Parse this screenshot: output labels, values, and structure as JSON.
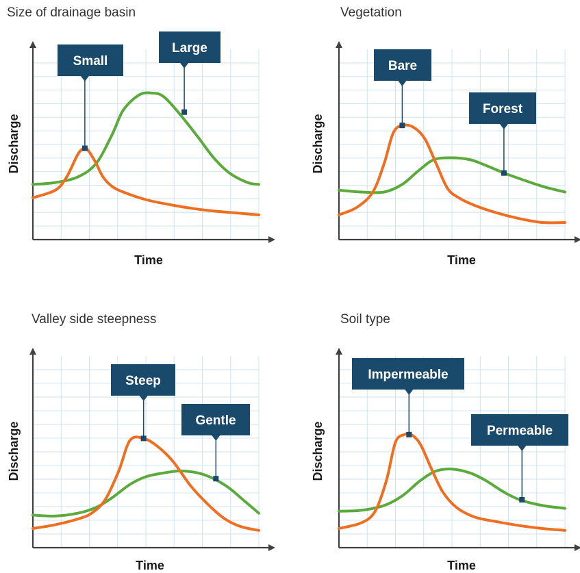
{
  "colors": {
    "grid": "#cfe3f1",
    "axis": "#404040",
    "callout_bg": "#1a4a6b",
    "callout_text": "#ffffff",
    "series_a": "#ee6f22",
    "series_b": "#5aab3c"
  },
  "chart_data": [
    {
      "type": "line",
      "title": "Size of drainage basin",
      "xlabel": "Time",
      "ylabel": "Discharge",
      "grid": true,
      "xlim": [
        0,
        10
      ],
      "ylim": [
        0,
        10
      ],
      "series": [
        {
          "name": "Small",
          "color": "#ee6f22",
          "x": [
            0,
            1,
            1.5,
            2,
            2.3,
            2.5,
            2.8,
            3.1,
            3.5,
            4,
            5,
            6,
            7,
            8,
            10
          ],
          "y": [
            2.2,
            2.6,
            3.3,
            4.5,
            4.8,
            4.6,
            4.0,
            3.3,
            2.8,
            2.5,
            2.1,
            1.85,
            1.65,
            1.5,
            1.3
          ],
          "label_at": [
            2.3,
            4.8
          ]
        },
        {
          "name": "Large",
          "color": "#5aab3c",
          "x": [
            0,
            1,
            2,
            2.8,
            3.5,
            4,
            4.7,
            5.3,
            5.8,
            6.5,
            7.3,
            8,
            8.7,
            9.5,
            10
          ],
          "y": [
            2.9,
            3.0,
            3.3,
            4.0,
            5.5,
            6.8,
            7.6,
            7.7,
            7.5,
            6.6,
            5.4,
            4.3,
            3.5,
            3.0,
            2.9
          ],
          "label_at": [
            6.7,
            6.7
          ]
        }
      ]
    },
    {
      "type": "line",
      "title": "Vegetation",
      "xlabel": "Time",
      "ylabel": "Discharge",
      "grid": true,
      "xlim": [
        0,
        10
      ],
      "ylim": [
        0,
        10
      ],
      "series": [
        {
          "name": "Bare",
          "color": "#ee6f22",
          "x": [
            0,
            0.8,
            1.5,
            2,
            2.4,
            2.8,
            3.3,
            3.8,
            4.3,
            4.8,
            5.3,
            6,
            7,
            8,
            9,
            10
          ],
          "y": [
            1.3,
            1.7,
            2.5,
            4.0,
            5.6,
            6.0,
            5.9,
            5.3,
            4.0,
            2.7,
            2.2,
            1.8,
            1.4,
            1.1,
            0.9,
            0.9
          ],
          "label_at": [
            2.8,
            6.0
          ]
        },
        {
          "name": "Forest",
          "color": "#5aab3c",
          "x": [
            0,
            1,
            2,
            2.8,
            3.5,
            4.2,
            5,
            5.8,
            6.5,
            7.3,
            8,
            9,
            10
          ],
          "y": [
            2.6,
            2.5,
            2.5,
            2.9,
            3.6,
            4.2,
            4.3,
            4.2,
            3.9,
            3.5,
            3.2,
            2.8,
            2.5
          ],
          "label_at": [
            7.3,
            3.5
          ]
        }
      ]
    },
    {
      "type": "line",
      "title": "Valley side steepness",
      "xlabel": "Time",
      "ylabel": "Discharge",
      "grid": true,
      "xlim": [
        0,
        10
      ],
      "ylim": [
        0,
        10
      ],
      "series": [
        {
          "name": "Steep",
          "color": "#ee6f22",
          "x": [
            0,
            1,
            2,
            2.6,
            3.2,
            3.8,
            4.3,
            4.9,
            5.5,
            6.2,
            7,
            7.8,
            8.5,
            9.2,
            10
          ],
          "y": [
            1.0,
            1.2,
            1.5,
            1.8,
            2.5,
            4.0,
            5.6,
            5.7,
            5.3,
            4.5,
            3.2,
            2.2,
            1.5,
            1.1,
            0.9
          ],
          "label_at": [
            4.9,
            5.7
          ]
        },
        {
          "name": "Gentle",
          "color": "#5aab3c",
          "x": [
            0,
            1,
            2,
            2.8,
            3.5,
            4.3,
            5,
            5.8,
            6.5,
            7.3,
            8,
            8.7,
            9.3,
            10
          ],
          "y": [
            1.7,
            1.65,
            1.8,
            2.1,
            2.6,
            3.3,
            3.7,
            3.9,
            4.0,
            3.9,
            3.6,
            3.1,
            2.5,
            1.8
          ],
          "label_at": [
            8.1,
            3.6
          ]
        }
      ]
    },
    {
      "type": "line",
      "title": "Soil type",
      "xlabel": "Time",
      "ylabel": "Discharge",
      "grid": true,
      "xlim": [
        0,
        10
      ],
      "ylim": [
        0,
        10
      ],
      "series": [
        {
          "name": "Impermeable",
          "color": "#ee6f22",
          "x": [
            0,
            1,
            1.6,
            2.1,
            2.5,
            2.9,
            3.2,
            3.6,
            4.1,
            4.6,
            5.2,
            6,
            7,
            8,
            9,
            10
          ],
          "y": [
            1.0,
            1.3,
            1.9,
            3.5,
            5.5,
            5.9,
            5.9,
            5.4,
            4.1,
            2.9,
            2.1,
            1.6,
            1.35,
            1.15,
            1.0,
            0.9
          ],
          "label_at": [
            3.1,
            5.9
          ]
        },
        {
          "name": "Permeable",
          "color": "#5aab3c",
          "x": [
            0,
            1,
            2,
            2.8,
            3.6,
            4.3,
            5,
            5.8,
            6.5,
            7.3,
            8,
            9,
            10
          ],
          "y": [
            1.9,
            1.95,
            2.2,
            2.7,
            3.5,
            4.0,
            4.1,
            3.9,
            3.5,
            2.9,
            2.5,
            2.2,
            2.05
          ],
          "label_at": [
            8.1,
            2.5
          ]
        }
      ]
    }
  ]
}
